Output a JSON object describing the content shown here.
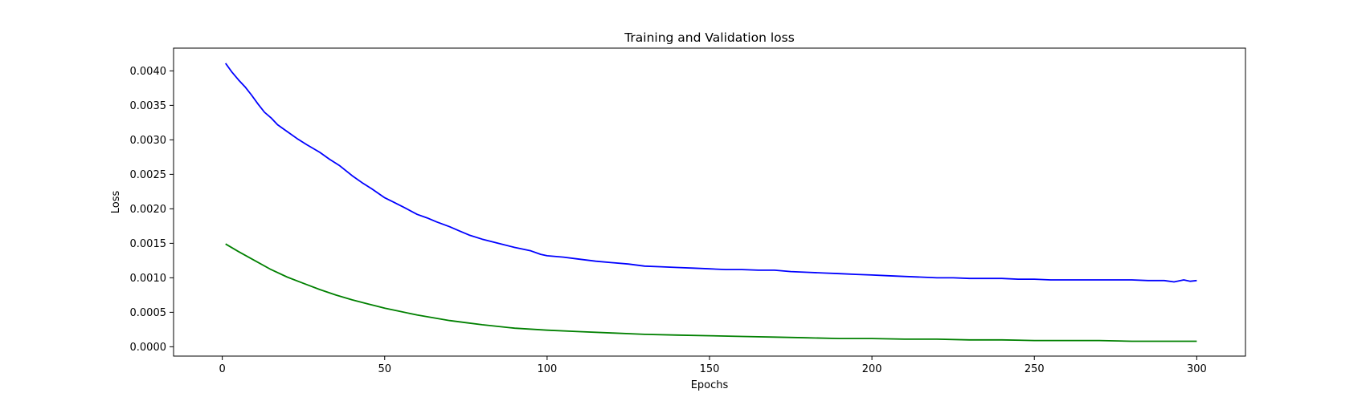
{
  "chart_data": {
    "type": "line",
    "title": "Training and Validation loss",
    "xlabel": "Epochs",
    "ylabel": "Loss",
    "xlim": [
      -15,
      315
    ],
    "ylim": [
      -0.000135,
      0.00433
    ],
    "xticks": [
      0,
      50,
      100,
      150,
      200,
      250,
      300
    ],
    "xtick_labels": [
      "0",
      "50",
      "100",
      "150",
      "200",
      "250",
      "300"
    ],
    "yticks": [
      0.0,
      0.0005,
      0.001,
      0.0015,
      0.002,
      0.0025,
      0.003,
      0.0035,
      0.004
    ],
    "ytick_labels": [
      "0.0000",
      "0.0005",
      "0.0010",
      "0.0015",
      "0.0020",
      "0.0025",
      "0.0030",
      "0.0035",
      "0.0040"
    ],
    "grid": false,
    "legend": "none",
    "series": [
      {
        "color": "#0000ff",
        "x": [
          1,
          3,
          5,
          7,
          9,
          11,
          13,
          15,
          17,
          20,
          23,
          26,
          30,
          33,
          36,
          40,
          43,
          46,
          50,
          53,
          56,
          60,
          63,
          66,
          70,
          73,
          76,
          80,
          85,
          90,
          95,
          98,
          100,
          105,
          110,
          115,
          120,
          125,
          130,
          135,
          140,
          145,
          150,
          155,
          160,
          165,
          170,
          175,
          180,
          185,
          190,
          195,
          200,
          205,
          210,
          215,
          220,
          225,
          230,
          235,
          240,
          245,
          250,
          255,
          260,
          265,
          270,
          275,
          280,
          285,
          290,
          293,
          296,
          298,
          300
        ],
        "y": [
          0.00411,
          0.00398,
          0.00387,
          0.00377,
          0.00365,
          0.00352,
          0.0034,
          0.00332,
          0.00322,
          0.00312,
          0.00302,
          0.00293,
          0.00282,
          0.00272,
          0.00263,
          0.00248,
          0.00238,
          0.00229,
          0.00216,
          0.00209,
          0.00202,
          0.00192,
          0.00187,
          0.00181,
          0.00174,
          0.00168,
          0.00162,
          0.00156,
          0.0015,
          0.00144,
          0.00139,
          0.00134,
          0.00132,
          0.0013,
          0.00127,
          0.00124,
          0.00122,
          0.0012,
          0.00117,
          0.00116,
          0.00115,
          0.00114,
          0.00113,
          0.00112,
          0.00112,
          0.00111,
          0.00111,
          0.00109,
          0.00108,
          0.00107,
          0.00106,
          0.00105,
          0.00104,
          0.00103,
          0.00102,
          0.00101,
          0.001,
          0.001,
          0.00099,
          0.00099,
          0.00099,
          0.00098,
          0.00098,
          0.00097,
          0.00097,
          0.00097,
          0.00097,
          0.00097,
          0.00097,
          0.00096,
          0.00096,
          0.00094,
          0.00097,
          0.00095,
          0.00096
        ]
      },
      {
        "color": "#008000",
        "x": [
          1,
          5,
          10,
          15,
          20,
          25,
          30,
          35,
          40,
          45,
          50,
          55,
          60,
          65,
          70,
          75,
          80,
          90,
          100,
          110,
          120,
          130,
          140,
          150,
          160,
          170,
          180,
          190,
          200,
          210,
          220,
          230,
          240,
          250,
          260,
          270,
          280,
          290,
          300
        ],
        "y": [
          0.00149,
          0.00138,
          0.00125,
          0.00112,
          0.00101,
          0.00092,
          0.00083,
          0.00075,
          0.00068,
          0.00062,
          0.00056,
          0.00051,
          0.00046,
          0.00042,
          0.00038,
          0.00035,
          0.00032,
          0.00027,
          0.00024,
          0.00022,
          0.0002,
          0.00018,
          0.00017,
          0.00016,
          0.00015,
          0.00014,
          0.00013,
          0.00012,
          0.00012,
          0.00011,
          0.00011,
          0.0001,
          0.0001,
          9e-05,
          9e-05,
          9e-05,
          8e-05,
          8e-05,
          8e-05
        ]
      }
    ]
  }
}
